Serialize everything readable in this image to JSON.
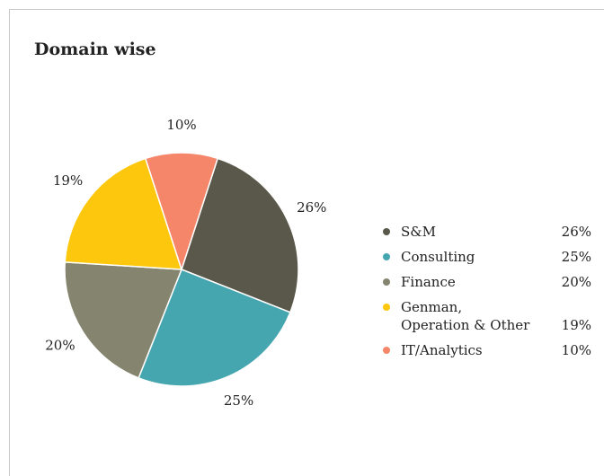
{
  "chart_data": {
    "type": "pie",
    "title": "Domain wise",
    "categories": [
      "S&M",
      "Consulting",
      "Finance",
      "Genman,\nOperation & Other",
      "IT/Analytics"
    ],
    "values": [
      26,
      25,
      20,
      19,
      10
    ],
    "value_labels": [
      "26%",
      "25%",
      "20%",
      "19%",
      "10%"
    ],
    "colors": [
      "#5a584a",
      "#45a6b0",
      "#85846f",
      "#fcc70d",
      "#f5866a"
    ],
    "legend": "right"
  }
}
